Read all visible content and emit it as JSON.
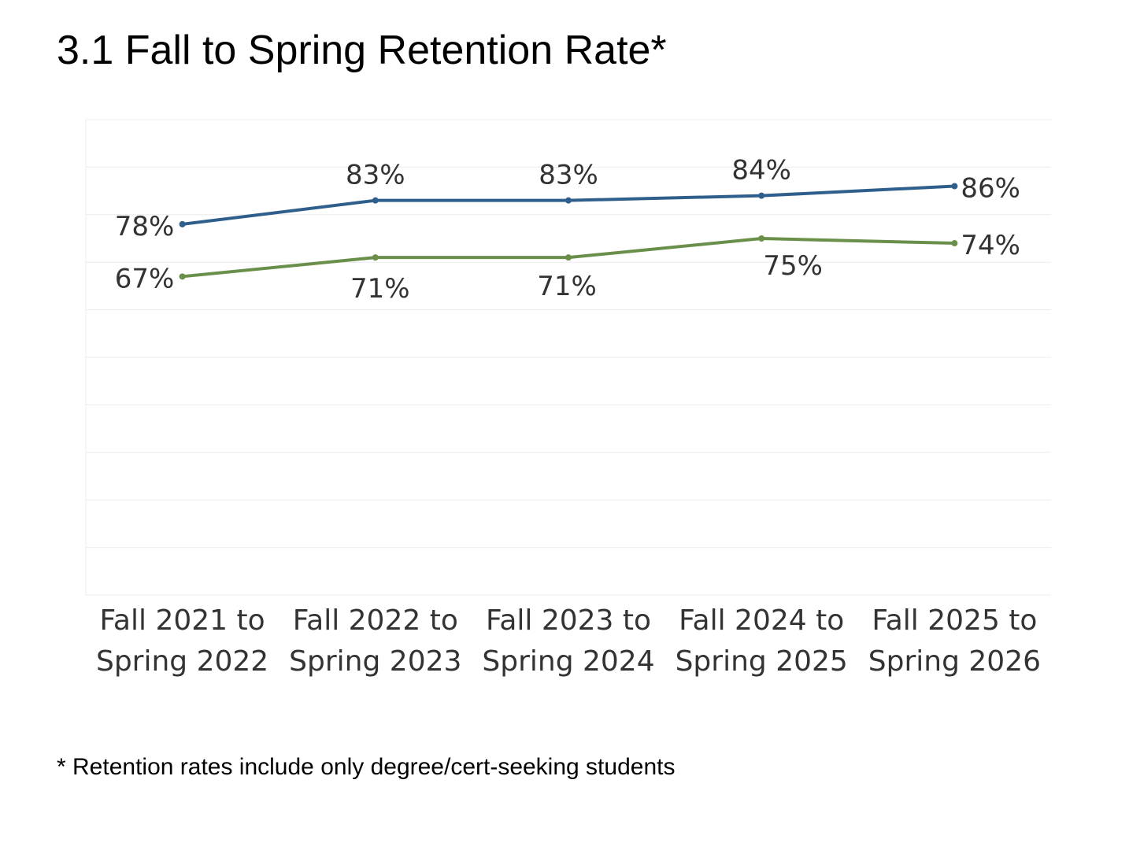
{
  "title": "3.1 Fall to Spring Retention Rate*",
  "footnote": "* Retention rates include only degree/cert-seeking students",
  "chart_data": {
    "type": "line",
    "title": "3.1 Fall to Spring Retention Rate*",
    "categories": [
      [
        "Fall 2021 to",
        "Spring 2022"
      ],
      [
        "Fall 2022 to",
        "Spring 2023"
      ],
      [
        "Fall 2023 to",
        "Spring 2024"
      ],
      [
        "Fall 2024 to",
        "Spring 2025"
      ],
      [
        "Fall 2025 to",
        "Spring 2026"
      ]
    ],
    "series": [
      {
        "values": [
          78,
          83,
          83,
          84,
          86
        ],
        "labels": [
          "78%",
          "83%",
          "83%",
          "84%",
          "86%"
        ],
        "color": "#2e5f8c"
      },
      {
        "values": [
          67,
          71,
          71,
          75,
          74
        ],
        "labels": [
          "67%",
          "71%",
          "71%",
          "75%",
          "74%"
        ],
        "color": "#6a8f4a"
      }
    ],
    "ylim": [
      0,
      100
    ],
    "grid": true,
    "legend": "none"
  }
}
